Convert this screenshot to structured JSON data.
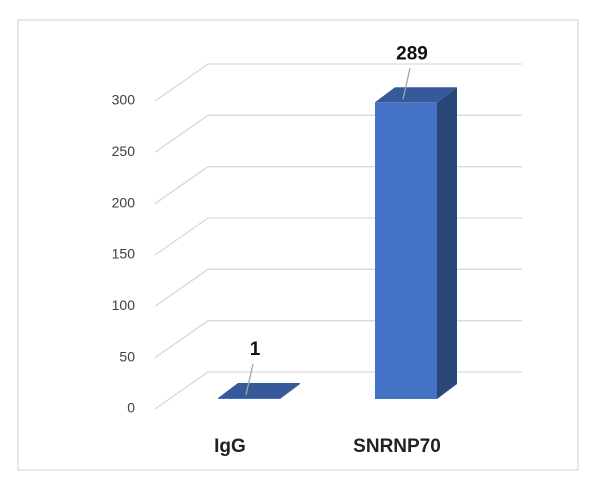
{
  "chart_data": {
    "type": "bar3d",
    "categories": [
      "IgG",
      "SNRNP70"
    ],
    "values": [
      1,
      289
    ],
    "color": "#4472c4",
    "ylim": [
      0,
      300
    ],
    "yticks": [
      0,
      50,
      100,
      150,
      200,
      250,
      300
    ],
    "grid": true
  }
}
